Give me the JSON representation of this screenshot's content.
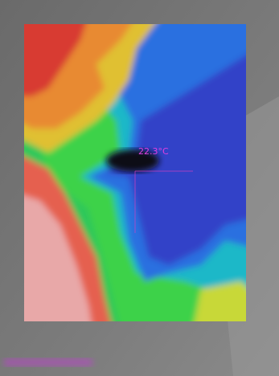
{
  "overlay": {
    "spot_temperature": "22.3°C"
  }
}
